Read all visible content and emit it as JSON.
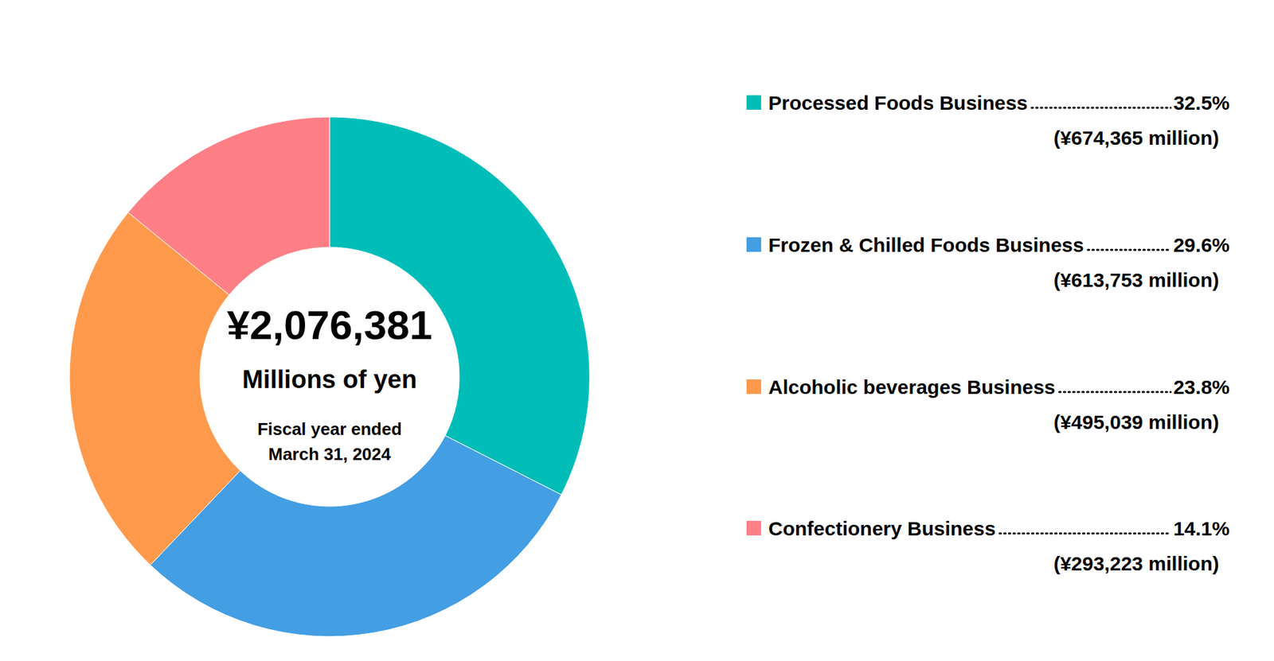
{
  "chart_data": {
    "type": "pie",
    "categories": [
      "Processed Foods Business",
      "Frozen & Chilled Foods Business",
      "Alcoholic beverages Business",
      "Confectionery Business"
    ],
    "values": [
      32.5,
      29.6,
      23.8,
      14.1
    ],
    "value_labels": [
      "32.5%",
      "29.6%",
      "23.8%",
      "14.1%"
    ],
    "amount_labels": [
      "(¥674,365 million)",
      "(¥613,753 million)",
      "(¥495,039 million)",
      "(¥293,223 million)"
    ],
    "colors": [
      "#00bdb8",
      "#449ee3",
      "#ff9a4d",
      "#ff7f87"
    ],
    "annotations": [
      "¥2,076,381",
      "Millions of yen",
      "Fiscal year ended",
      "March 31, 2024"
    ],
    "legend": "right"
  }
}
